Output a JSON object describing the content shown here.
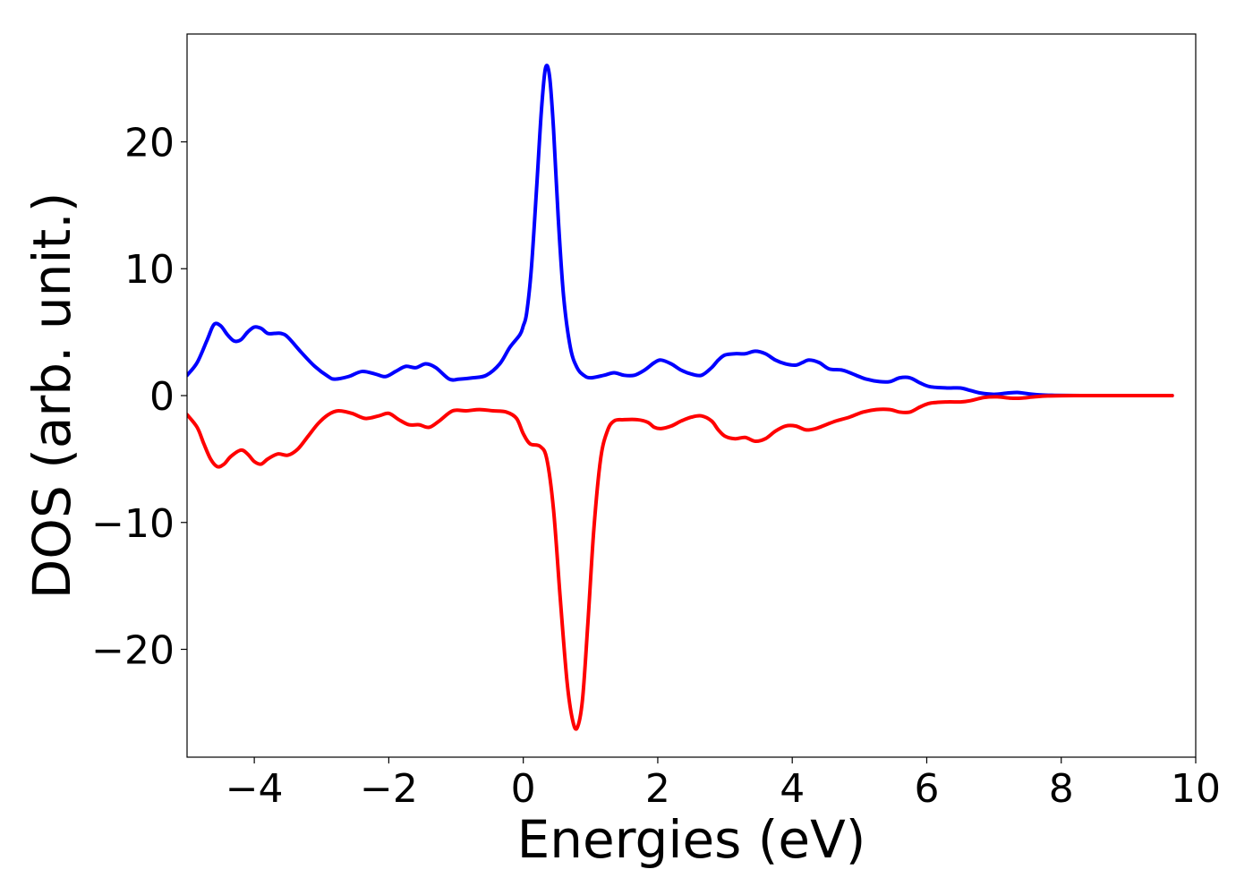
{
  "chart_data": {
    "type": "line",
    "title": "",
    "xlabel": "Energies (eV)",
    "ylabel": "DOS (arb. unit.)",
    "xlim": [
      -5,
      10
    ],
    "ylim": [
      -28.5,
      28.5
    ],
    "xticks": [
      -4,
      -2,
      0,
      2,
      4,
      6,
      8,
      10
    ],
    "xtick_labels": [
      "−4",
      "−2",
      "0",
      "2",
      "4",
      "6",
      "8",
      "10"
    ],
    "yticks": [
      -20,
      -10,
      0,
      10,
      20
    ],
    "ytick_labels": [
      "−20",
      "−10",
      "0",
      "10",
      "20"
    ],
    "grid": false,
    "legend": false,
    "series": [
      {
        "color": "#0000ff",
        "points": [
          [
            -5.0,
            1.6
          ],
          [
            -4.85,
            2.6
          ],
          [
            -4.7,
            4.4
          ],
          [
            -4.6,
            5.6
          ],
          [
            -4.5,
            5.5
          ],
          [
            -4.4,
            4.8
          ],
          [
            -4.3,
            4.3
          ],
          [
            -4.2,
            4.4
          ],
          [
            -4.1,
            5.0
          ],
          [
            -4.0,
            5.4
          ],
          [
            -3.9,
            5.3
          ],
          [
            -3.8,
            4.9
          ],
          [
            -3.7,
            4.9
          ],
          [
            -3.6,
            4.9
          ],
          [
            -3.5,
            4.6
          ],
          [
            -3.3,
            3.4
          ],
          [
            -3.1,
            2.3
          ],
          [
            -2.9,
            1.5
          ],
          [
            -2.8,
            1.3
          ],
          [
            -2.6,
            1.5
          ],
          [
            -2.4,
            1.9
          ],
          [
            -2.2,
            1.7
          ],
          [
            -2.05,
            1.5
          ],
          [
            -1.9,
            1.9
          ],
          [
            -1.75,
            2.3
          ],
          [
            -1.6,
            2.2
          ],
          [
            -1.45,
            2.5
          ],
          [
            -1.3,
            2.2
          ],
          [
            -1.1,
            1.3
          ],
          [
            -0.95,
            1.3
          ],
          [
            -0.75,
            1.4
          ],
          [
            -0.55,
            1.6
          ],
          [
            -0.35,
            2.5
          ],
          [
            -0.2,
            3.8
          ],
          [
            -0.05,
            4.8
          ],
          [
            0.0,
            5.5
          ],
          [
            0.05,
            6.5
          ],
          [
            0.12,
            10.0
          ],
          [
            0.2,
            16.5
          ],
          [
            0.27,
            22.5
          ],
          [
            0.33,
            25.8
          ],
          [
            0.39,
            25.2
          ],
          [
            0.45,
            21.0
          ],
          [
            0.52,
            14.0
          ],
          [
            0.6,
            7.8
          ],
          [
            0.7,
            3.8
          ],
          [
            0.8,
            2.2
          ],
          [
            0.9,
            1.6
          ],
          [
            1.0,
            1.4
          ],
          [
            1.2,
            1.6
          ],
          [
            1.35,
            1.8
          ],
          [
            1.5,
            1.6
          ],
          [
            1.65,
            1.6
          ],
          [
            1.8,
            2.0
          ],
          [
            1.95,
            2.6
          ],
          [
            2.05,
            2.8
          ],
          [
            2.2,
            2.5
          ],
          [
            2.35,
            2.0
          ],
          [
            2.5,
            1.7
          ],
          [
            2.65,
            1.6
          ],
          [
            2.8,
            2.2
          ],
          [
            2.9,
            2.8
          ],
          [
            3.0,
            3.2
          ],
          [
            3.15,
            3.3
          ],
          [
            3.3,
            3.3
          ],
          [
            3.45,
            3.5
          ],
          [
            3.6,
            3.3
          ],
          [
            3.75,
            2.8
          ],
          [
            3.9,
            2.5
          ],
          [
            4.05,
            2.4
          ],
          [
            4.15,
            2.6
          ],
          [
            4.25,
            2.8
          ],
          [
            4.4,
            2.6
          ],
          [
            4.55,
            2.1
          ],
          [
            4.75,
            2.0
          ],
          [
            4.95,
            1.6
          ],
          [
            5.1,
            1.3
          ],
          [
            5.3,
            1.1
          ],
          [
            5.45,
            1.1
          ],
          [
            5.6,
            1.4
          ],
          [
            5.75,
            1.4
          ],
          [
            5.9,
            1.0
          ],
          [
            6.05,
            0.7
          ],
          [
            6.3,
            0.6
          ],
          [
            6.5,
            0.6
          ],
          [
            6.65,
            0.4
          ],
          [
            6.8,
            0.2
          ],
          [
            7.0,
            0.1
          ],
          [
            7.2,
            0.2
          ],
          [
            7.35,
            0.25
          ],
          [
            7.5,
            0.15
          ],
          [
            7.7,
            0.05
          ],
          [
            7.9,
            0.02
          ],
          [
            8.3,
            0.0
          ],
          [
            9.0,
            0.0
          ],
          [
            9.65,
            0.0
          ]
        ]
      },
      {
        "color": "#ff0000",
        "points": [
          [
            -5.0,
            -1.5
          ],
          [
            -4.85,
            -2.5
          ],
          [
            -4.75,
            -3.8
          ],
          [
            -4.65,
            -5.0
          ],
          [
            -4.55,
            -5.6
          ],
          [
            -4.45,
            -5.4
          ],
          [
            -4.35,
            -4.8
          ],
          [
            -4.2,
            -4.3
          ],
          [
            -4.1,
            -4.6
          ],
          [
            -4.0,
            -5.2
          ],
          [
            -3.9,
            -5.4
          ],
          [
            -3.8,
            -5.0
          ],
          [
            -3.65,
            -4.6
          ],
          [
            -3.5,
            -4.7
          ],
          [
            -3.35,
            -4.2
          ],
          [
            -3.2,
            -3.2
          ],
          [
            -3.05,
            -2.2
          ],
          [
            -2.9,
            -1.5
          ],
          [
            -2.75,
            -1.2
          ],
          [
            -2.55,
            -1.4
          ],
          [
            -2.35,
            -1.8
          ],
          [
            -2.15,
            -1.6
          ],
          [
            -2.0,
            -1.4
          ],
          [
            -1.85,
            -1.9
          ],
          [
            -1.7,
            -2.3
          ],
          [
            -1.55,
            -2.3
          ],
          [
            -1.4,
            -2.5
          ],
          [
            -1.25,
            -2.0
          ],
          [
            -1.05,
            -1.2
          ],
          [
            -0.85,
            -1.2
          ],
          [
            -0.65,
            -1.1
          ],
          [
            -0.45,
            -1.2
          ],
          [
            -0.25,
            -1.3
          ],
          [
            -0.1,
            -1.8
          ],
          [
            0.0,
            -3.0
          ],
          [
            0.1,
            -3.8
          ],
          [
            0.25,
            -4.0
          ],
          [
            0.35,
            -5.0
          ],
          [
            0.45,
            -9.0
          ],
          [
            0.55,
            -16.0
          ],
          [
            0.65,
            -22.5
          ],
          [
            0.73,
            -25.5
          ],
          [
            0.8,
            -26.2
          ],
          [
            0.88,
            -24.0
          ],
          [
            0.96,
            -18.0
          ],
          [
            1.05,
            -10.5
          ],
          [
            1.15,
            -5.0
          ],
          [
            1.25,
            -2.8
          ],
          [
            1.35,
            -2.0
          ],
          [
            1.5,
            -1.9
          ],
          [
            1.7,
            -1.9
          ],
          [
            1.85,
            -2.1
          ],
          [
            1.95,
            -2.5
          ],
          [
            2.05,
            -2.6
          ],
          [
            2.2,
            -2.4
          ],
          [
            2.35,
            -2.0
          ],
          [
            2.5,
            -1.7
          ],
          [
            2.65,
            -1.6
          ],
          [
            2.8,
            -2.0
          ],
          [
            2.9,
            -2.7
          ],
          [
            3.0,
            -3.2
          ],
          [
            3.15,
            -3.4
          ],
          [
            3.3,
            -3.3
          ],
          [
            3.45,
            -3.6
          ],
          [
            3.6,
            -3.4
          ],
          [
            3.75,
            -2.8
          ],
          [
            3.9,
            -2.4
          ],
          [
            4.05,
            -2.4
          ],
          [
            4.2,
            -2.7
          ],
          [
            4.35,
            -2.6
          ],
          [
            4.5,
            -2.3
          ],
          [
            4.65,
            -2.0
          ],
          [
            4.85,
            -1.7
          ],
          [
            5.05,
            -1.3
          ],
          [
            5.25,
            -1.1
          ],
          [
            5.45,
            -1.1
          ],
          [
            5.6,
            -1.3
          ],
          [
            5.75,
            -1.3
          ],
          [
            5.9,
            -0.9
          ],
          [
            6.05,
            -0.6
          ],
          [
            6.3,
            -0.5
          ],
          [
            6.5,
            -0.5
          ],
          [
            6.65,
            -0.4
          ],
          [
            6.85,
            -0.15
          ],
          [
            7.05,
            -0.1
          ],
          [
            7.25,
            -0.2
          ],
          [
            7.4,
            -0.2
          ],
          [
            7.6,
            -0.1
          ],
          [
            7.8,
            -0.03
          ],
          [
            8.2,
            0.0
          ],
          [
            9.0,
            0.0
          ],
          [
            9.65,
            0.0
          ]
        ]
      }
    ]
  }
}
